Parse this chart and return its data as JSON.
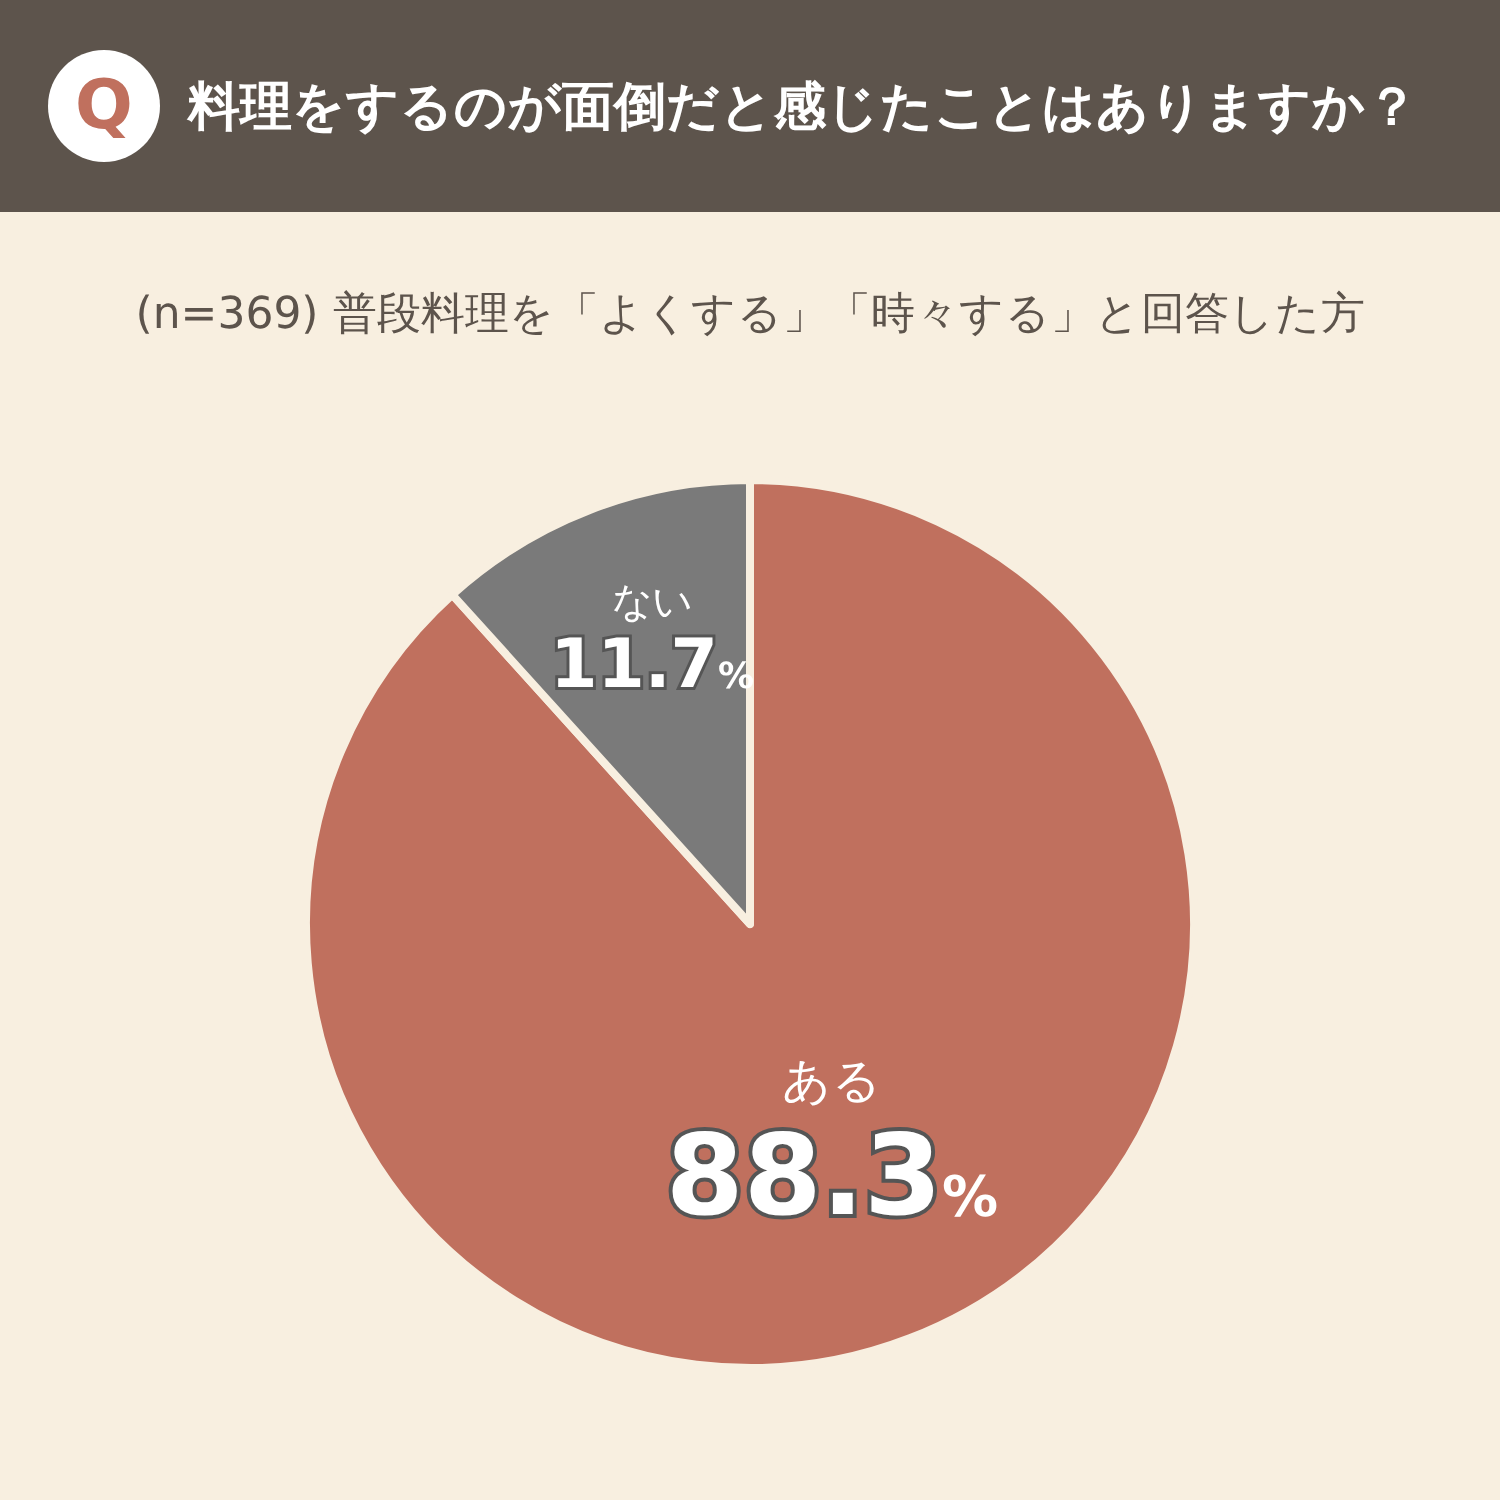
{
  "chart_data": {
    "type": "pie",
    "title": "料理をするのが面倒だと感じたことはありますか？",
    "subtitle": "(n=369) 普段料理を「よくする」「時々する」と回答した方",
    "annotations": [
      "Q"
    ],
    "categories": [
      "ある",
      "ない"
    ],
    "values": [
      88.3,
      11.7
    ],
    "value_labels": [
      "88.3%",
      "11.7%"
    ],
    "colors": [
      "#c0705e",
      "#7a7a7a"
    ],
    "legend": false
  }
}
